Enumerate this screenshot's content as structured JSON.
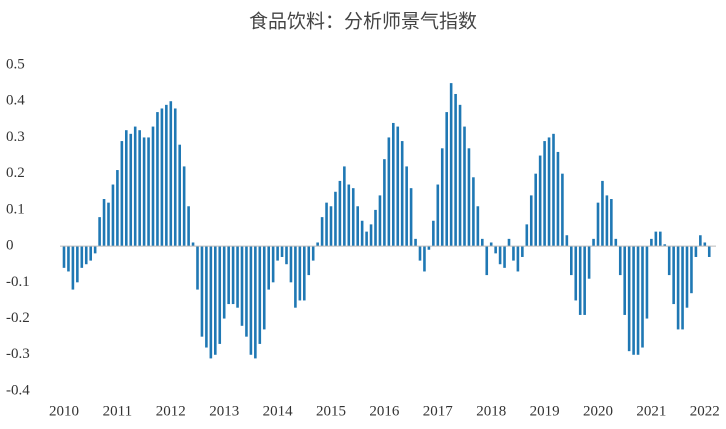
{
  "chart_data": {
    "type": "bar",
    "title": "食品饮料：分析师景气指数",
    "categories": [
      "2010",
      null,
      null,
      null,
      null,
      null,
      null,
      null,
      null,
      null,
      null,
      null,
      "2011",
      null,
      null,
      null,
      null,
      null,
      null,
      null,
      null,
      null,
      null,
      null,
      "2012",
      null,
      null,
      null,
      null,
      null,
      null,
      null,
      null,
      null,
      null,
      null,
      "2013",
      null,
      null,
      null,
      null,
      null,
      null,
      null,
      null,
      null,
      null,
      null,
      "2014",
      null,
      null,
      null,
      null,
      null,
      null,
      null,
      null,
      null,
      null,
      null,
      "2015",
      null,
      null,
      null,
      null,
      null,
      null,
      null,
      null,
      null,
      null,
      null,
      "2016",
      null,
      null,
      null,
      null,
      null,
      null,
      null,
      null,
      null,
      null,
      null,
      "2017",
      null,
      null,
      null,
      null,
      null,
      null,
      null,
      null,
      null,
      null,
      null,
      "2018",
      null,
      null,
      null,
      null,
      null,
      null,
      null,
      null,
      null,
      null,
      null,
      "2019",
      null,
      null,
      null,
      null,
      null,
      null,
      null,
      null,
      null,
      null,
      null,
      "2020",
      null,
      null,
      null,
      null,
      null,
      null,
      null,
      null,
      null,
      null,
      null,
      "2021",
      null,
      null,
      null,
      null,
      null,
      null,
      null,
      null,
      null,
      null,
      null,
      "2022",
      null
    ],
    "values": [
      -0.06,
      -0.07,
      -0.12,
      -0.1,
      -0.06,
      -0.05,
      -0.04,
      -0.02,
      0.08,
      0.13,
      0.12,
      0.17,
      0.21,
      0.29,
      0.32,
      0.31,
      0.33,
      0.32,
      0.3,
      0.3,
      0.33,
      0.37,
      0.38,
      0.39,
      0.4,
      0.38,
      0.28,
      0.22,
      0.11,
      0.01,
      -0.12,
      -0.25,
      -0.28,
      -0.31,
      -0.3,
      -0.27,
      -0.2,
      -0.16,
      -0.16,
      -0.17,
      -0.22,
      -0.25,
      -0.3,
      -0.31,
      -0.27,
      -0.23,
      -0.12,
      -0.1,
      -0.04,
      -0.03,
      -0.05,
      -0.1,
      -0.17,
      -0.15,
      -0.15,
      -0.08,
      -0.04,
      0.01,
      0.08,
      0.12,
      0.11,
      0.15,
      0.18,
      0.22,
      0.17,
      0.16,
      0.11,
      0.07,
      0.04,
      0.06,
      0.1,
      0.14,
      0.24,
      0.3,
      0.34,
      0.33,
      0.29,
      0.22,
      0.16,
      0.02,
      -0.04,
      -0.07,
      -0.01,
      0.07,
      0.17,
      0.27,
      0.37,
      0.45,
      0.42,
      0.39,
      0.33,
      0.27,
      0.19,
      0.11,
      0.02,
      -0.08,
      0.01,
      -0.02,
      -0.05,
      -0.06,
      0.02,
      -0.04,
      -0.07,
      -0.03,
      0.06,
      0.14,
      0.2,
      0.25,
      0.29,
      0.3,
      0.31,
      0.26,
      0.2,
      0.03,
      -0.08,
      -0.15,
      -0.19,
      -0.19,
      -0.09,
      0.02,
      0.12,
      0.18,
      0.14,
      0.13,
      0.02,
      -0.08,
      -0.19,
      -0.29,
      -0.3,
      -0.3,
      -0.28,
      -0.2,
      0.02,
      0.04,
      0.04,
      0.005,
      -0.08,
      -0.16,
      -0.23,
      -0.23,
      -0.17,
      -0.13,
      -0.03,
      0.03,
      0.01,
      -0.03
    ],
    "color": "#1f78b4",
    "ylim": [
      -0.4,
      0.5
    ],
    "yticks": [
      -0.4,
      -0.3,
      -0.2,
      -0.1,
      0,
      0.1,
      0.2,
      0.3,
      0.4,
      0.5
    ],
    "grid": false
  }
}
